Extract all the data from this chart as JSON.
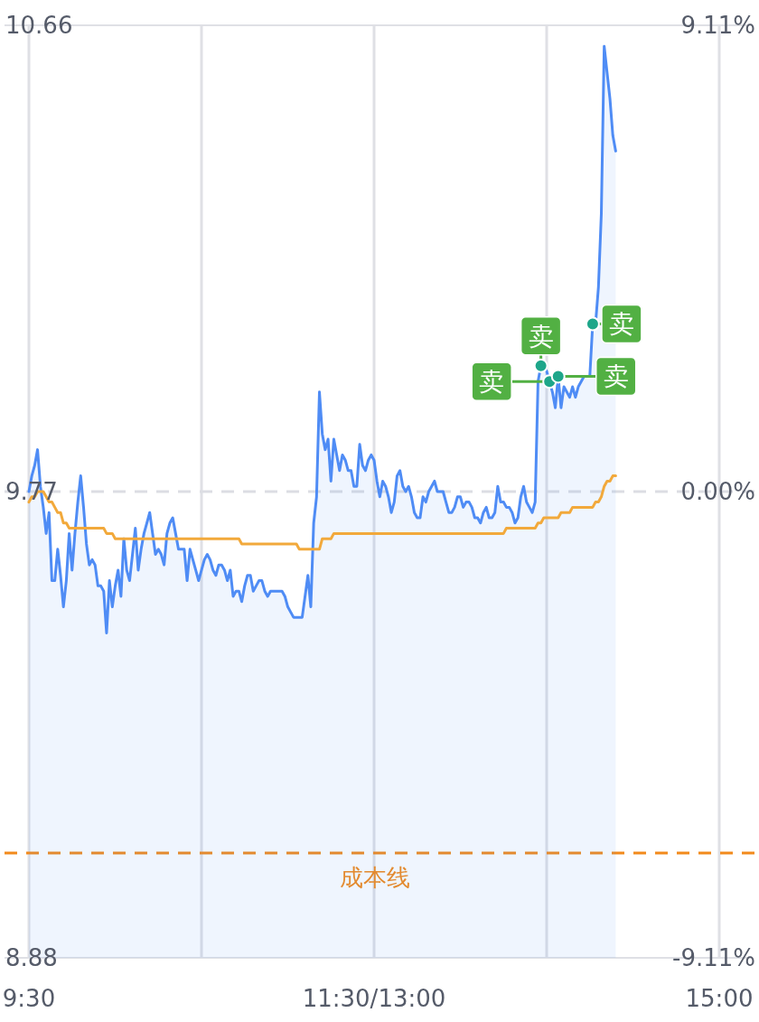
{
  "chart_data": {
    "type": "line",
    "categories": [
      "9:30",
      null,
      null,
      null,
      null,
      null,
      null,
      null,
      null,
      null,
      null,
      null,
      null,
      null,
      null,
      null,
      null,
      null,
      null,
      null,
      null,
      null,
      null,
      null,
      null,
      null,
      null,
      null,
      null,
      null,
      null,
      null,
      null,
      null,
      null,
      null,
      null,
      null,
      null,
      null,
      null,
      null,
      null,
      null,
      null,
      null,
      null,
      null,
      null,
      null,
      null,
      null,
      null,
      null,
      null,
      null,
      null,
      null,
      null,
      null,
      null,
      null,
      null,
      null,
      null,
      null,
      null,
      null,
      null,
      null,
      null,
      null,
      null,
      null,
      null,
      null,
      null,
      null,
      null,
      null,
      null,
      null,
      null,
      null,
      null,
      null,
      null,
      null,
      null,
      null,
      null,
      null,
      null,
      null,
      null,
      null,
      null,
      null,
      null,
      null,
      null,
      null,
      null,
      null,
      null,
      null,
      null,
      null,
      null,
      null,
      null,
      null,
      null,
      null,
      null,
      null,
      null,
      null,
      null,
      null,
      "11:30/13:00",
      null,
      null,
      null,
      null,
      null,
      null,
      null,
      null,
      null,
      null,
      null,
      null,
      null,
      null,
      null,
      null,
      null,
      null,
      null,
      null,
      null,
      null,
      null,
      null,
      null,
      null,
      null,
      null,
      null,
      null,
      null,
      null,
      null,
      null,
      null,
      null,
      null,
      null,
      null,
      null,
      null,
      null,
      null,
      null,
      null,
      null,
      null,
      null,
      null,
      null,
      null,
      null,
      null,
      null,
      null,
      null,
      null,
      null,
      null,
      null,
      null,
      null,
      null,
      null,
      null,
      null,
      null,
      null,
      null,
      null,
      null,
      null,
      null,
      null,
      null,
      null,
      null,
      null,
      null,
      null,
      null,
      null,
      null,
      null,
      null,
      null,
      null,
      null,
      null,
      null,
      null,
      null,
      null,
      null,
      null,
      null,
      null,
      null,
      null,
      null,
      null,
      null,
      null,
      null,
      null,
      null,
      null,
      null,
      null,
      null,
      null,
      null,
      null,
      null,
      null,
      null,
      null,
      null,
      null,
      "15:00"
    ],
    "series": [
      {
        "type": "area",
        "color": "#4f8cf5",
        "values": [
          9.77,
          9.8,
          9.82,
          9.85,
          9.78,
          9.74,
          9.69,
          9.73,
          9.6,
          9.6,
          9.66,
          9.61,
          9.55,
          9.6,
          9.69,
          9.62,
          9.69,
          9.75,
          9.8,
          9.74,
          9.67,
          9.63,
          9.64,
          9.63,
          9.59,
          9.59,
          9.58,
          9.5,
          9.6,
          9.55,
          9.59,
          9.62,
          9.57,
          9.68,
          9.62,
          9.6,
          9.65,
          9.7,
          9.62,
          9.66,
          9.69,
          9.71,
          9.73,
          9.69,
          9.65,
          9.66,
          9.65,
          9.63,
          9.69,
          9.71,
          9.72,
          9.69,
          9.66,
          9.66,
          9.66,
          9.6,
          9.66,
          9.64,
          9.62,
          9.6,
          9.62,
          9.64,
          9.65,
          9.64,
          9.62,
          9.61,
          9.63,
          9.63,
          9.62,
          9.6,
          9.62,
          9.57,
          9.58,
          9.58,
          9.56,
          9.59,
          9.61,
          9.61,
          9.58,
          9.59,
          9.6,
          9.6,
          9.58,
          9.57,
          9.58,
          9.58,
          9.58,
          9.58,
          9.58,
          9.57,
          9.55,
          9.54,
          9.53,
          9.53,
          9.53,
          9.53,
          9.57,
          9.61,
          9.55,
          9.71,
          9.76,
          9.96,
          9.88,
          9.85,
          9.87,
          9.79,
          9.87,
          9.84,
          9.81,
          9.84,
          9.83,
          9.81,
          9.81,
          9.78,
          9.78,
          9.86,
          9.82,
          9.81,
          9.83,
          9.84,
          9.83,
          9.79,
          9.76,
          9.79,
          9.78,
          9.76,
          9.73,
          9.75,
          9.8,
          9.81,
          9.78,
          9.77,
          9.78,
          9.76,
          9.73,
          9.72,
          9.72,
          9.76,
          9.75,
          9.77,
          9.78,
          9.79,
          9.77,
          9.77,
          9.77,
          9.75,
          9.73,
          9.73,
          9.74,
          9.76,
          9.76,
          9.74,
          9.75,
          9.75,
          9.74,
          9.72,
          9.72,
          9.71,
          9.73,
          9.74,
          9.72,
          9.72,
          9.73,
          9.78,
          9.75,
          9.75,
          9.74,
          9.74,
          9.73,
          9.71,
          9.72,
          9.76,
          9.78,
          9.75,
          9.74,
          9.73,
          9.75,
          9.98,
          10.01,
          10.01,
          10.0,
          9.98,
          9.96,
          9.93,
          9.99,
          9.93,
          9.97,
          9.96,
          9.95,
          9.97,
          9.95,
          9.97,
          9.98,
          9.99,
          9.99,
          9.99,
          10.09,
          10.09,
          10.16,
          10.3,
          10.62,
          10.57,
          10.52,
          10.45,
          10.42,
          null,
          null,
          null,
          null,
          null,
          null,
          null,
          null,
          null,
          null,
          null,
          null,
          null,
          null,
          null,
          null,
          null,
          null,
          null,
          null,
          null,
          null,
          null,
          null,
          null,
          null,
          null,
          null,
          null,
          null,
          null,
          null,
          null,
          null,
          null,
          null
        ]
      },
      {
        "type": "line",
        "color": "#f2a93b",
        "values": [
          9.75,
          9.76,
          9.76,
          9.77,
          9.77,
          9.77,
          9.76,
          9.75,
          9.75,
          9.74,
          9.73,
          9.73,
          9.71,
          9.71,
          9.7,
          9.7,
          9.7,
          9.7,
          9.7,
          9.7,
          9.7,
          9.7,
          9.7,
          9.7,
          9.7,
          9.7,
          9.7,
          9.69,
          9.69,
          9.69,
          9.68,
          9.68,
          9.68,
          9.68,
          9.68,
          9.68,
          9.68,
          9.68,
          9.68,
          9.68,
          9.68,
          9.68,
          9.68,
          9.68,
          9.68,
          9.68,
          9.68,
          9.68,
          9.68,
          9.68,
          9.68,
          9.68,
          9.68,
          9.68,
          9.68,
          9.68,
          9.68,
          9.68,
          9.68,
          9.68,
          9.68,
          9.68,
          9.68,
          9.68,
          9.68,
          9.68,
          9.68,
          9.68,
          9.68,
          9.68,
          9.68,
          9.68,
          9.68,
          9.68,
          9.67,
          9.67,
          9.67,
          9.67,
          9.67,
          9.67,
          9.67,
          9.67,
          9.67,
          9.67,
          9.67,
          9.67,
          9.67,
          9.67,
          9.67,
          9.67,
          9.67,
          9.67,
          9.67,
          9.67,
          9.66,
          9.66,
          9.66,
          9.66,
          9.66,
          9.66,
          9.66,
          9.66,
          9.68,
          9.68,
          9.68,
          9.68,
          9.69,
          9.69,
          9.69,
          9.69,
          9.69,
          9.69,
          9.69,
          9.69,
          9.69,
          9.69,
          9.69,
          9.69,
          9.69,
          9.69,
          9.69,
          9.69,
          9.69,
          9.69,
          9.69,
          9.69,
          9.69,
          9.69,
          9.69,
          9.69,
          9.69,
          9.69,
          9.69,
          9.69,
          9.69,
          9.69,
          9.69,
          9.69,
          9.69,
          9.69,
          9.69,
          9.69,
          9.69,
          9.69,
          9.69,
          9.69,
          9.69,
          9.69,
          9.69,
          9.69,
          9.69,
          9.69,
          9.69,
          9.69,
          9.69,
          9.69,
          9.69,
          9.69,
          9.69,
          9.69,
          9.69,
          9.69,
          9.69,
          9.69,
          9.69,
          9.69,
          9.7,
          9.7,
          9.7,
          9.7,
          9.7,
          9.7,
          9.7,
          9.7,
          9.7,
          9.7,
          9.7,
          9.71,
          9.71,
          9.72,
          9.72,
          9.72,
          9.72,
          9.72,
          9.72,
          9.73,
          9.73,
          9.73,
          9.73,
          9.74,
          9.74,
          9.74,
          9.74,
          9.74,
          9.74,
          9.74,
          9.74,
          9.75,
          9.75,
          9.76,
          9.78,
          9.79,
          9.79,
          9.8,
          9.8,
          null,
          null,
          null,
          null,
          null,
          null,
          null,
          null,
          null,
          null,
          null,
          null,
          null,
          null,
          null,
          null,
          null,
          null,
          null,
          null,
          null,
          null,
          null,
          null,
          null,
          null,
          null,
          null,
          null,
          null,
          null,
          null,
          null,
          null,
          null,
          null
        ]
      },
      {
        "type": "scatter",
        "color": "#1ea68a",
        "values": [
          null,
          null,
          null,
          null,
          null,
          null,
          null,
          null,
          null,
          null,
          null,
          null,
          null,
          null,
          null,
          null,
          null,
          null,
          null,
          null,
          null,
          null,
          null,
          null,
          null,
          null,
          null,
          null,
          null,
          null,
          null,
          null,
          null,
          null,
          null,
          null,
          null,
          null,
          null,
          null,
          null,
          null,
          null,
          null,
          null,
          null,
          null,
          null,
          null,
          null,
          null,
          null,
          null,
          null,
          null,
          null,
          null,
          null,
          null,
          null,
          null,
          null,
          null,
          null,
          null,
          null,
          null,
          null,
          null,
          null,
          null,
          null,
          null,
          null,
          null,
          null,
          null,
          null,
          null,
          null,
          null,
          null,
          null,
          null,
          null,
          null,
          null,
          null,
          null,
          null,
          null,
          null,
          null,
          null,
          null,
          null,
          null,
          null,
          null,
          null,
          null,
          null,
          null,
          null,
          null,
          null,
          null,
          null,
          null,
          null,
          null,
          null,
          null,
          null,
          null,
          null,
          null,
          null,
          null,
          null,
          null,
          null,
          null,
          null,
          null,
          null,
          null,
          null,
          null,
          null,
          null,
          null,
          null,
          null,
          null,
          null,
          null,
          null,
          null,
          null,
          null,
          null,
          null,
          null,
          null,
          null,
          null,
          null,
          null,
          null,
          null,
          null,
          null,
          null,
          null,
          null,
          null,
          null,
          null,
          null,
          null,
          null,
          null,
          null,
          null,
          null,
          null,
          null,
          null,
          null,
          null,
          null,
          null,
          null,
          null,
          null,
          null,
          null,
          10.01,
          null,
          null,
          9.98,
          null,
          null,
          9.99,
          null,
          null,
          null,
          null,
          null,
          null,
          null,
          null,
          null,
          null,
          null,
          10.09,
          null,
          null,
          null,
          null,
          null,
          null,
          null,
          null,
          null,
          null,
          null,
          null,
          null,
          null,
          null,
          null,
          null,
          null,
          null,
          null,
          null,
          null,
          null,
          null,
          null,
          null,
          null,
          null,
          null,
          null,
          null,
          null,
          null,
          null,
          null,
          null,
          null,
          null,
          null,
          null,
          null,
          null,
          null,
          null
        ],
        "value_labels": [
          null,
          null,
          null,
          null,
          null,
          null,
          null,
          null,
          null,
          null,
          null,
          null,
          null,
          null,
          null,
          null,
          null,
          null,
          null,
          null,
          null,
          null,
          null,
          null,
          null,
          null,
          null,
          null,
          null,
          null,
          null,
          null,
          null,
          null,
          null,
          null,
          null,
          null,
          null,
          null,
          null,
          null,
          null,
          null,
          null,
          null,
          null,
          null,
          null,
          null,
          null,
          null,
          null,
          null,
          null,
          null,
          null,
          null,
          null,
          null,
          null,
          null,
          null,
          null,
          null,
          null,
          null,
          null,
          null,
          null,
          null,
          null,
          null,
          null,
          null,
          null,
          null,
          null,
          null,
          null,
          null,
          null,
          null,
          null,
          null,
          null,
          null,
          null,
          null,
          null,
          null,
          null,
          null,
          null,
          null,
          null,
          null,
          null,
          null,
          null,
          null,
          null,
          null,
          null,
          null,
          null,
          null,
          null,
          null,
          null,
          null,
          null,
          null,
          null,
          null,
          null,
          null,
          null,
          null,
          null,
          null,
          null,
          null,
          null,
          null,
          null,
          null,
          null,
          null,
          null,
          null,
          null,
          null,
          null,
          null,
          null,
          null,
          null,
          null,
          null,
          null,
          null,
          null,
          null,
          null,
          null,
          null,
          null,
          null,
          null,
          null,
          null,
          null,
          null,
          null,
          null,
          null,
          null,
          null,
          null,
          null,
          null,
          null,
          null,
          null,
          null,
          null,
          null,
          null,
          null,
          null,
          null,
          null,
          null,
          null,
          null,
          null,
          null,
          "卖",
          null,
          null,
          "卖",
          null,
          null,
          "卖",
          null,
          null,
          null,
          null,
          null,
          null,
          null,
          null,
          null,
          null,
          null,
          "卖",
          null,
          null,
          null,
          null,
          null,
          null,
          null,
          null,
          null,
          null,
          null,
          null,
          null,
          null,
          null,
          null,
          null,
          null,
          null,
          null,
          null,
          null,
          null,
          null,
          null,
          null,
          null,
          null,
          null,
          null,
          null,
          null,
          null,
          null,
          null,
          null,
          null,
          null,
          null,
          null,
          null,
          null,
          null,
          null
        ]
      }
    ],
    "ylim": [
      8.88,
      10.66
    ],
    "yticks": [
      8.88,
      9.77,
      10.66
    ],
    "y2lim": [
      -9.11,
      9.11
    ],
    "y2ticks": [
      {
        "value": -9.11,
        "label": "-9.11%"
      },
      {
        "value": 0,
        "label": "0.00%"
      },
      {
        "value": 9.11,
        "label": "9.11%"
      }
    ],
    "grid": "x",
    "ref_lines": [
      {
        "axis": "y",
        "value": 9.77,
        "label": null,
        "color": "#dcdde3",
        "line_style": "dashed"
      },
      {
        "axis": "y",
        "value": 9.08,
        "label": "成本线",
        "color": "#f28a1c",
        "line_style": "dashed"
      }
    ]
  }
}
